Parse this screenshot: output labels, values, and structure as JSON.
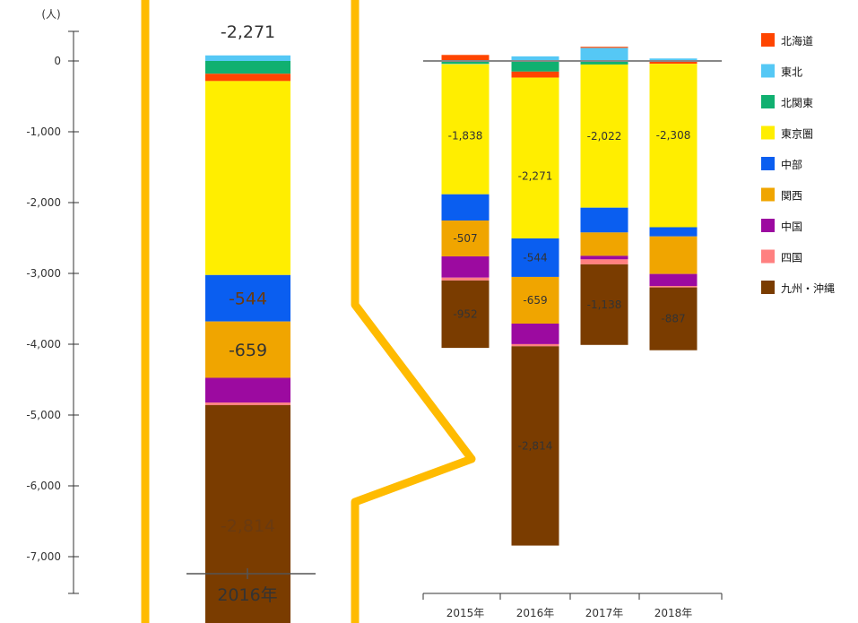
{
  "chart_data": {
    "type": "bar",
    "stacked": true,
    "unit_label": "(人)",
    "categories": [
      "2015年",
      "2016年",
      "2017年",
      "2018年"
    ],
    "ylim": [
      -7600,
      450
    ],
    "y_ticks": [
      0,
      -1000,
      -2000,
      -3000,
      -4000,
      -5000,
      -6000,
      -7000
    ],
    "y_tick_labels": [
      "0",
      "-1,000",
      "-2,000",
      "-3,000",
      "-4,000",
      "-5,000",
      "-6,000",
      "-7,000"
    ],
    "positive_series_order": [
      "東北",
      "北海道"
    ],
    "negative_series_order": [
      "北関東",
      "北海道",
      "東北",
      "東京圏",
      "中部",
      "関西",
      "中国",
      "四国",
      "九州・沖縄"
    ],
    "series": [
      {
        "name": "北海道",
        "color": "#ff4500",
        "values": [
          85,
          -85,
          15,
          -30
        ]
      },
      {
        "name": "東北",
        "color": "#55c8f5",
        "values": [
          -5,
          65,
          185,
          35
        ]
      },
      {
        "name": "北関東",
        "color": "#10b070",
        "values": [
          -40,
          -150,
          -50,
          -10
        ]
      },
      {
        "name": "東京圏",
        "color": "#ffee00",
        "values": [
          -1838,
          -2271,
          -2022,
          -2308
        ]
      },
      {
        "name": "中部",
        "color": "#0a5ef0",
        "values": [
          -370,
          -544,
          -350,
          -130
        ]
      },
      {
        "name": "関西",
        "color": "#f0a500",
        "values": [
          -507,
          -659,
          -330,
          -530
        ]
      },
      {
        "name": "中国",
        "color": "#9c0aa0",
        "values": [
          -300,
          -290,
          -50,
          -170
        ]
      },
      {
        "name": "四国",
        "color": "#ff8080",
        "values": [
          -40,
          -30,
          -70,
          -20
        ]
      },
      {
        "name": "九州・沖縄",
        "color": "#7a3c00",
        "values": [
          -952,
          -2814,
          -1138,
          -887
        ]
      }
    ],
    "value_labels": [
      {
        "series": "東京圏",
        "category": "2015年",
        "text": "-1,838"
      },
      {
        "series": "東京圏",
        "category": "2016年",
        "text": "-2,271"
      },
      {
        "series": "東京圏",
        "category": "2017年",
        "text": "-2,022"
      },
      {
        "series": "東京圏",
        "category": "2018年",
        "text": "-2,308"
      },
      {
        "series": "中部",
        "category": "2016年",
        "text": "-544"
      },
      {
        "series": "関西",
        "category": "2015年",
        "text": "-507"
      },
      {
        "series": "関西",
        "category": "2016年",
        "text": "-659"
      },
      {
        "series": "九州・沖縄",
        "category": "2015年",
        "text": "-952"
      },
      {
        "series": "九州・沖縄",
        "category": "2016年",
        "text": "-2,814"
      },
      {
        "series": "九州・沖縄",
        "category": "2017年",
        "text": "-1,138"
      },
      {
        "series": "九州・沖縄",
        "category": "2018年",
        "text": "-887"
      }
    ],
    "zoom": {
      "category": "2016年",
      "labels": [
        {
          "series": "東京圏",
          "text": "-2,271"
        },
        {
          "series": "中部",
          "text": "-544"
        },
        {
          "series": "関西",
          "text": "-659"
        },
        {
          "series": "九州・沖縄",
          "text": "-2,814"
        }
      ]
    },
    "legend": {
      "position": "right",
      "items": [
        "北海道",
        "東北",
        "北関東",
        "東京圏",
        "中部",
        "関西",
        "中国",
        "四国",
        "九州・沖縄"
      ]
    },
    "highlight_color": "#ffbb00",
    "zero_line_color": "#888888"
  }
}
